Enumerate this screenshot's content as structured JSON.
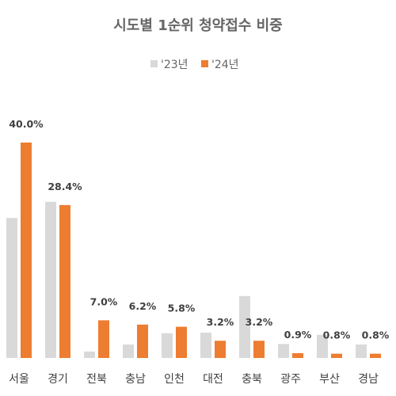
{
  "chart_data": {
    "type": "bar",
    "title": "시도별 1순위 청약접수 비중",
    "categories": [
      "서울",
      "경기",
      "전북",
      "충남",
      "인천",
      "대전",
      "충북",
      "광주",
      "부산",
      "경남"
    ],
    "series": [
      {
        "name": "'23년",
        "color": "#d9d9d9",
        "values": [
          26.0,
          29.0,
          1.2,
          2.5,
          4.6,
          4.7,
          11.5,
          2.6,
          4.3,
          2.5
        ]
      },
      {
        "name": "'24년",
        "color": "#ed7d31",
        "values": [
          40.0,
          28.4,
          7.0,
          6.2,
          5.8,
          3.2,
          3.2,
          0.9,
          0.8,
          0.8
        ],
        "labels": [
          "40.0%",
          "28.4%",
          "7.0%",
          "6.2%",
          "5.8%",
          "3.2%",
          "3.2%",
          "0.9%",
          "0.8%",
          "0.8%"
        ]
      }
    ],
    "ylim": [
      0,
      40
    ],
    "grid": false,
    "legend_position": "top-center",
    "xlabel": "",
    "ylabel": ""
  }
}
